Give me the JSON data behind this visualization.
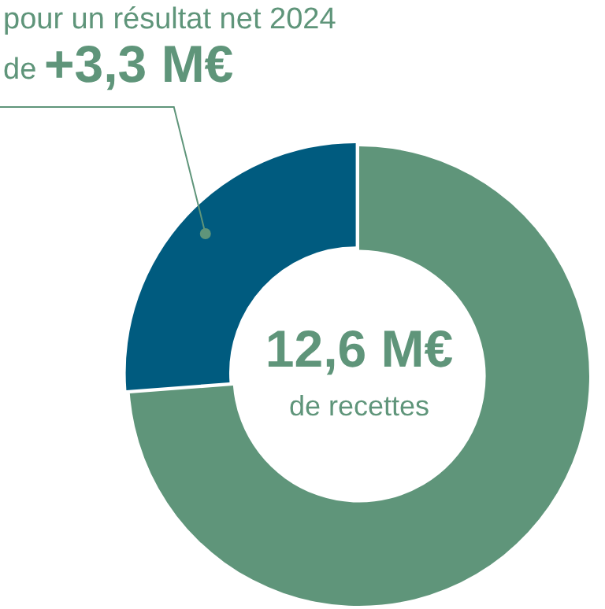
{
  "chart_data": {
    "type": "donut",
    "categories": [
      null,
      null
    ],
    "values": [
      73.8,
      26.2
    ],
    "colors": [
      "#5f957a",
      "#005b7f"
    ],
    "annotations": [
      "pour un résultat net 2024",
      "de",
      "+3,3 M€",
      "12,6 M€",
      "de recettes"
    ]
  }
}
